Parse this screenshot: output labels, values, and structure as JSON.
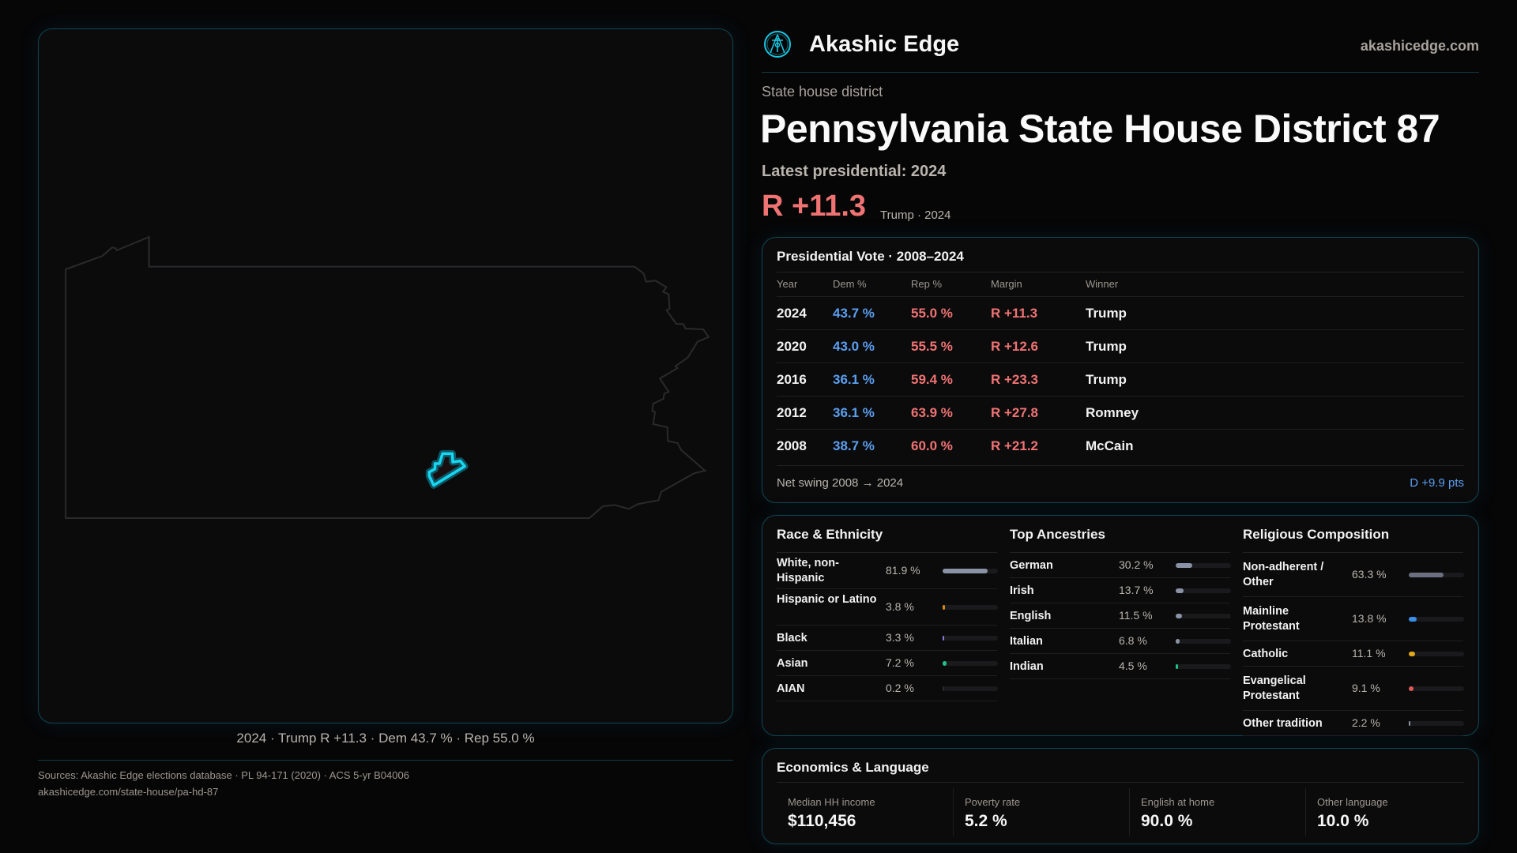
{
  "brand": {
    "name": "Akashic Edge",
    "site": "akashicedge.com",
    "logo_icon": "compass-key-emblem-icon",
    "accent": "#19d6f0"
  },
  "page": {
    "kind": "State house district",
    "title": "Pennsylvania State House District 87",
    "latest": "Latest presidential: 2024",
    "margin": "R +11.3",
    "margin_sub": "Trump · 2024"
  },
  "map": {
    "caption": "2024 · Trump R +11.3 · Dem 43.7 % · Rep 55.0 %",
    "state_outline_color": "#2a2a2c",
    "district_color": "#19d6f0"
  },
  "vote": {
    "title": "Presidential Vote · 2008–2024",
    "headers": [
      "Year",
      "Dem %",
      "Rep %",
      "Margin",
      "Winner"
    ],
    "rows": [
      {
        "year": "2024",
        "dem": "43.7 %",
        "rep": "55.0 %",
        "margin": "R +11.3",
        "winner": "Trump"
      },
      {
        "year": "2020",
        "dem": "43.0 %",
        "rep": "55.5 %",
        "margin": "R +12.6",
        "winner": "Trump"
      },
      {
        "year": "2016",
        "dem": "36.1 %",
        "rep": "59.4 %",
        "margin": "R +23.3",
        "winner": "Trump"
      },
      {
        "year": "2012",
        "dem": "36.1 %",
        "rep": "63.9 %",
        "margin": "R +27.8",
        "winner": "Romney"
      },
      {
        "year": "2008",
        "dem": "38.7 %",
        "rep": "60.0 %",
        "margin": "R +21.2",
        "winner": "McCain"
      }
    ],
    "swing_label": "Net swing 2008 → 2024",
    "swing_value": "D +9.9 pts"
  },
  "demographics": [
    {
      "title": "Race & Ethnicity",
      "items": [
        {
          "label": "White, non-Hispanic",
          "value": "81.9 %",
          "pct": 81.9,
          "color": "#8a93a6"
        },
        {
          "label": "Hispanic or Latino",
          "value": "3.8 %",
          "pct": 3.8,
          "color": "#d08a1a"
        },
        {
          "label": "Black",
          "value": "3.3 %",
          "pct": 3.3,
          "color": "#8f7ae0"
        },
        {
          "label": "Asian",
          "value": "7.2 %",
          "pct": 7.2,
          "color": "#22c08a"
        },
        {
          "label": "AIAN",
          "value": "0.2 %",
          "pct": 0.2,
          "color": "#2a2a2c"
        }
      ]
    },
    {
      "title": "Top Ancestries",
      "items": [
        {
          "label": "German",
          "value": "30.2 %",
          "pct": 30.2,
          "color": "#8a93a6"
        },
        {
          "label": "Irish",
          "value": "13.7 %",
          "pct": 13.7,
          "color": "#8a93a6"
        },
        {
          "label": "English",
          "value": "11.5 %",
          "pct": 11.5,
          "color": "#8a93a6"
        },
        {
          "label": "Italian",
          "value": "6.8 %",
          "pct": 6.8,
          "color": "#8a93a6"
        },
        {
          "label": "Indian",
          "value": "4.5 %",
          "pct": 4.5,
          "color": "#22c08a"
        }
      ]
    },
    {
      "title": "Religious Composition",
      "items": [
        {
          "label": "Non-adherent / Other",
          "value": "63.3 %",
          "pct": 63.3,
          "color": "#6b7080"
        },
        {
          "label": "Mainline Protestant",
          "value": "13.8 %",
          "pct": 13.8,
          "color": "#3a8ee6"
        },
        {
          "label": "Catholic",
          "value": "11.1 %",
          "pct": 11.1,
          "color": "#e0a81a"
        },
        {
          "label": "Evangelical Protestant",
          "value": "9.1 %",
          "pct": 9.1,
          "color": "#e05a5a"
        },
        {
          "label": "Other tradition",
          "value": "2.2 %",
          "pct": 2.2,
          "color": "#8a93a6"
        }
      ]
    }
  ],
  "economics": {
    "title": "Economics & Language",
    "cells": [
      {
        "label": "Median HH income",
        "value": "$110,456"
      },
      {
        "label": "Poverty rate",
        "value": "5.2 %"
      },
      {
        "label": "English at home",
        "value": "90.0 %"
      },
      {
        "label": "Other language",
        "value": "10.0 %"
      }
    ]
  },
  "sources": {
    "line1": "Sources: Akashic Edge elections database · PL 94-171 (2020) · ACS 5-yr B04006",
    "line2": "akashicedge.com/state-house/pa-hd-87"
  }
}
